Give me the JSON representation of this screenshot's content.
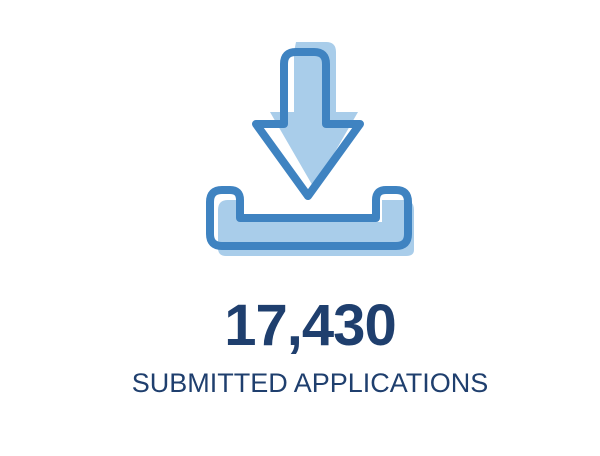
{
  "stat": {
    "icon": "download-tray-icon",
    "value": "17,430",
    "label": "SUBMITTED APPLICATIONS"
  },
  "colors": {
    "outline": "#3f83c1",
    "fill": "#a9cdea",
    "text": "#1f3f6e"
  }
}
